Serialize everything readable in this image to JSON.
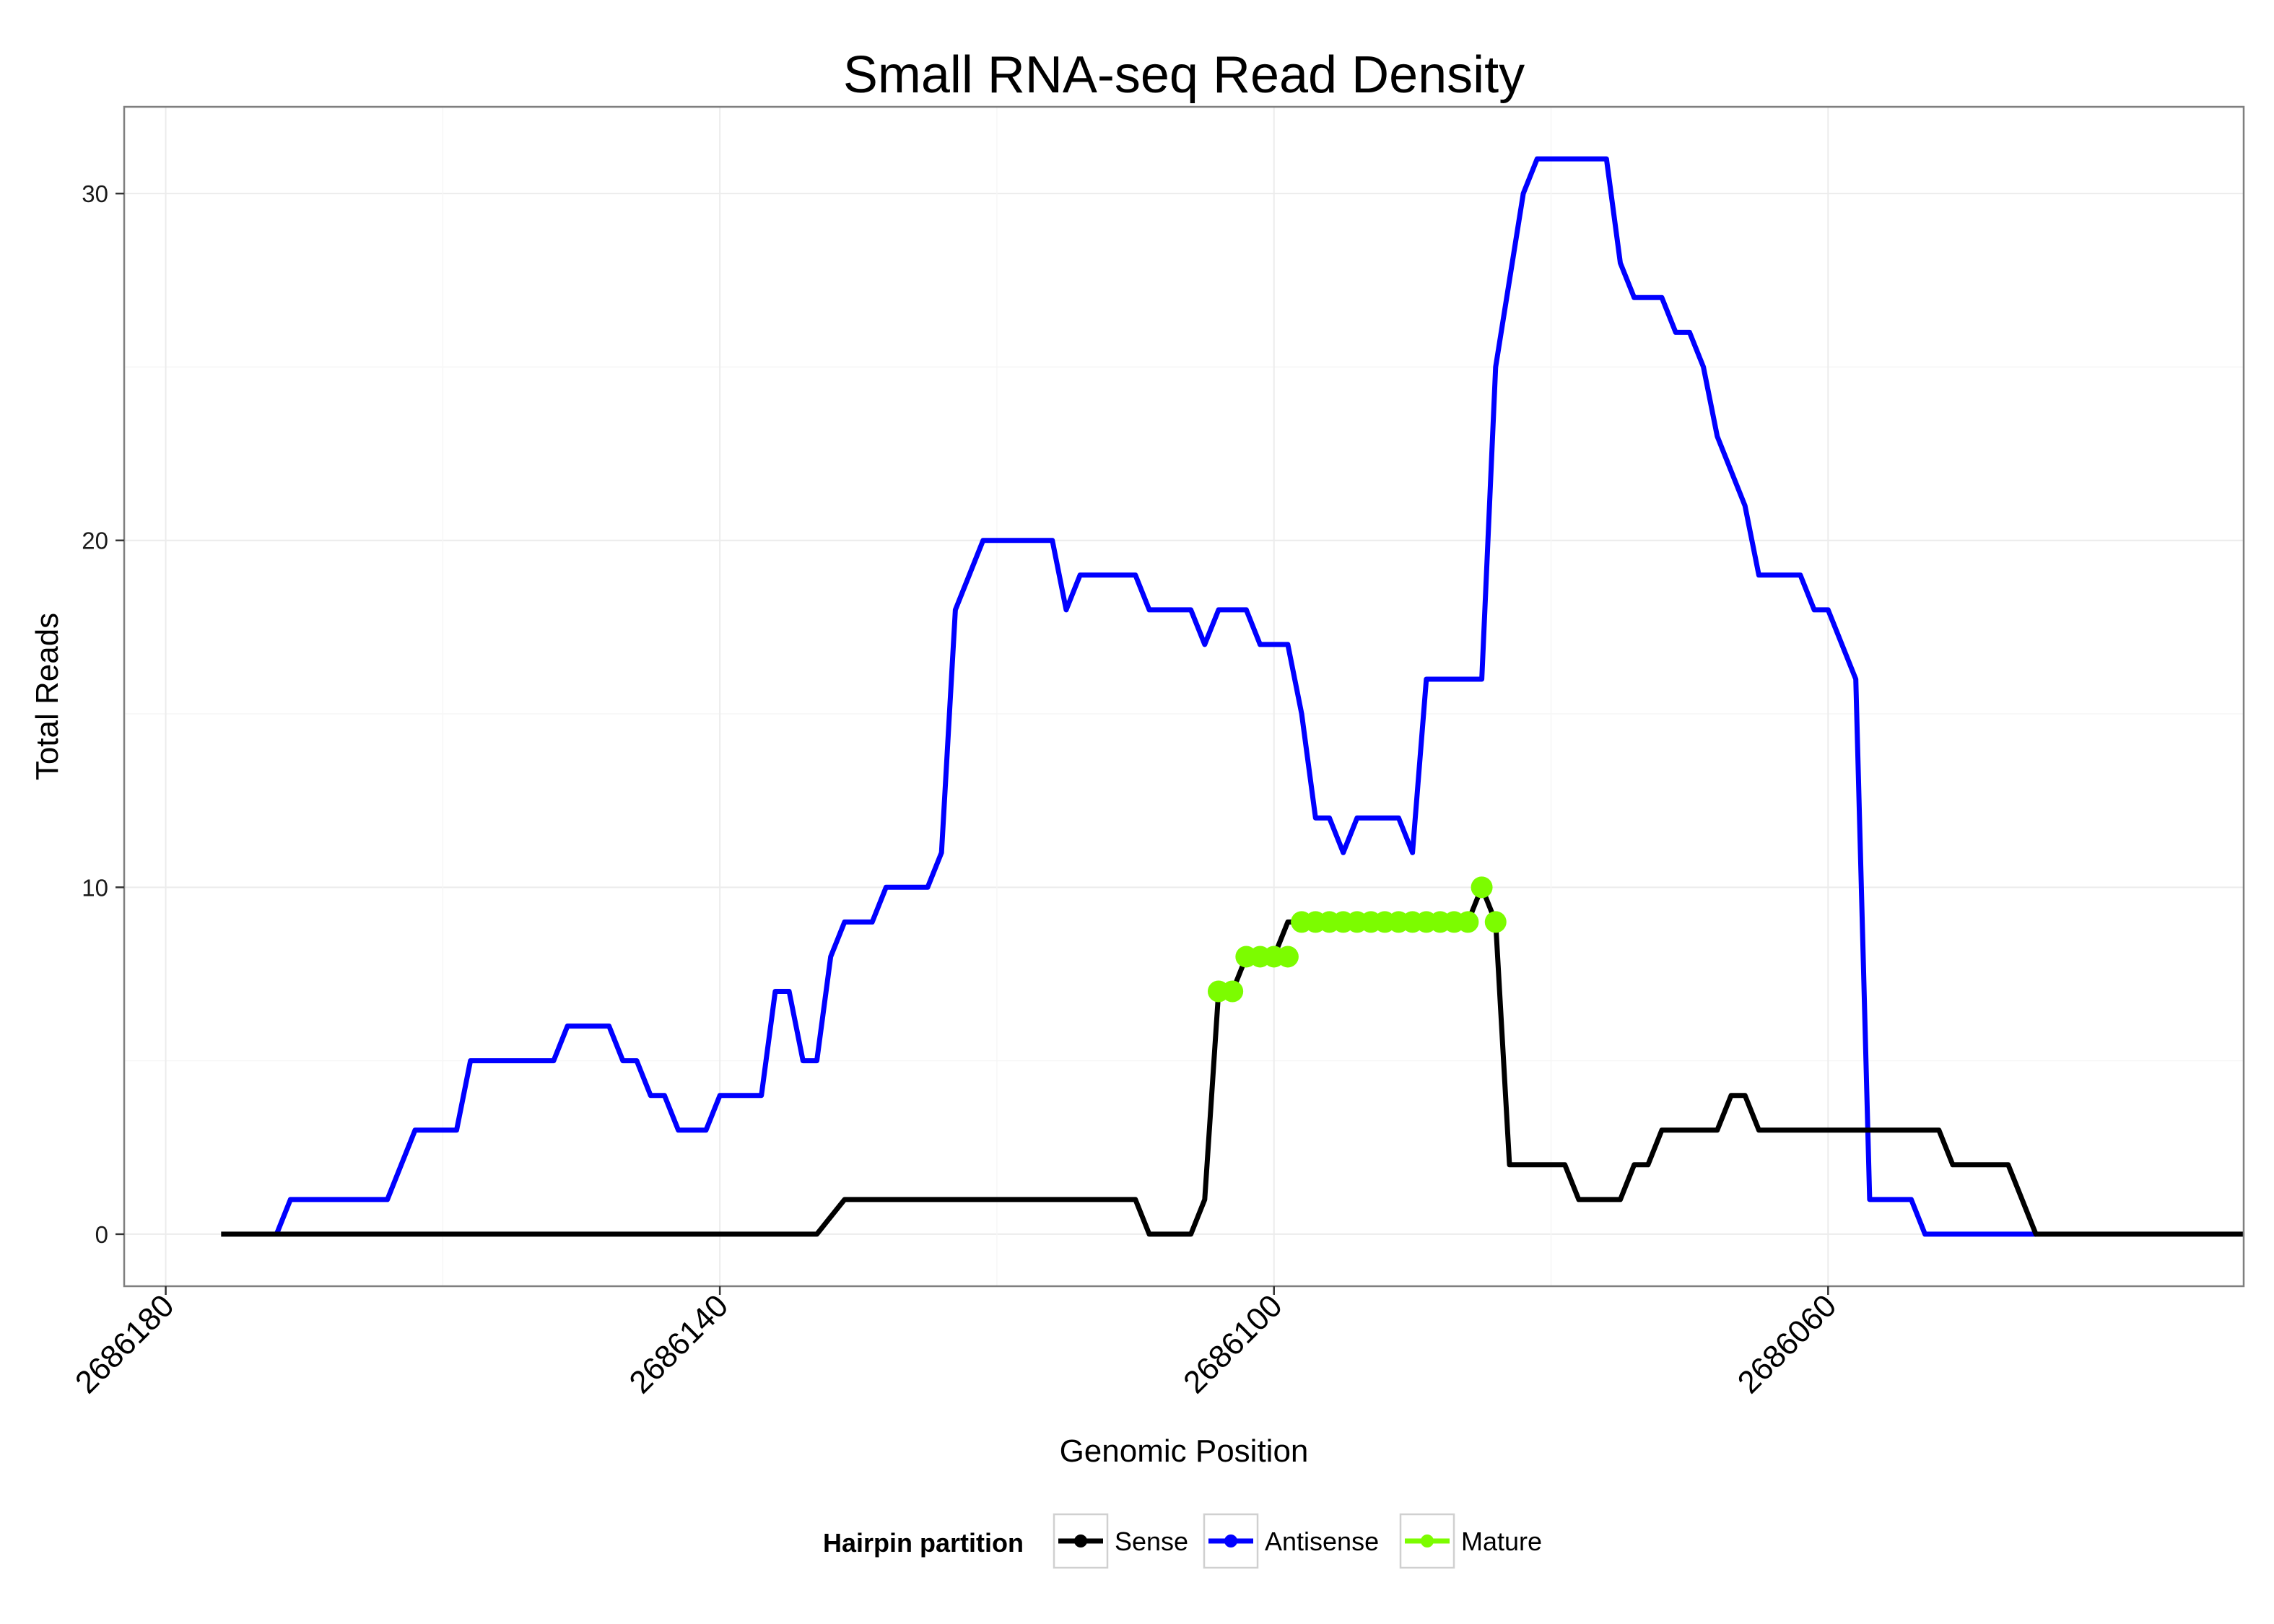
{
  "chart_data": {
    "type": "line",
    "title": "Small RNA-seq Read Density",
    "xlabel": "Genomic Position",
    "ylabel": "Total Reads",
    "x_reversed": true,
    "xlim": [
      2686183,
      2686030
    ],
    "ylim": [
      -1.5,
      32.5
    ],
    "x_ticks": [
      2686180,
      2686140,
      2686100,
      2686060
    ],
    "x_tick_labels": [
      "2686180",
      "2686140",
      "2686100",
      "2686060"
    ],
    "y_ticks": [
      0,
      10,
      20,
      30
    ],
    "y_tick_labels": [
      "0",
      "10",
      "20",
      "30"
    ],
    "grid": true,
    "legend": {
      "title": "Hairpin partition",
      "position": "bottom",
      "entries": [
        "Sense",
        "Antisense",
        "Mature"
      ]
    },
    "colors": {
      "Sense": "#000000",
      "Antisense": "#0000ff",
      "Mature": "#7cfc00"
    },
    "series": [
      {
        "name": "Sense",
        "points": [
          [
            2686176,
            0
          ],
          [
            2686135,
            0
          ],
          [
            2686133,
            0
          ],
          [
            2686131,
            1
          ],
          [
            2686110,
            1
          ],
          [
            2686109,
            0
          ],
          [
            2686106,
            0
          ],
          [
            2686105,
            1
          ],
          [
            2686104,
            7
          ],
          [
            2686103,
            7
          ],
          [
            2686102,
            8
          ],
          [
            2686101,
            8
          ],
          [
            2686100,
            8
          ],
          [
            2686099,
            9
          ],
          [
            2686086,
            9
          ],
          [
            2686085,
            10
          ],
          [
            2686084,
            9
          ],
          [
            2686083,
            2
          ],
          [
            2686079,
            2
          ],
          [
            2686078,
            1
          ],
          [
            2686075,
            1
          ],
          [
            2686074,
            2
          ],
          [
            2686073,
            2
          ],
          [
            2686072,
            3
          ],
          [
            2686068,
            3
          ],
          [
            2686067,
            4
          ],
          [
            2686066,
            4
          ],
          [
            2686065,
            3
          ],
          [
            2686052,
            3
          ],
          [
            2686051,
            2
          ],
          [
            2686047,
            2
          ],
          [
            2686045,
            0
          ],
          [
            2686030,
            0
          ]
        ]
      },
      {
        "name": "Antisense",
        "points": [
          [
            2686172,
            0
          ],
          [
            2686171,
            1
          ],
          [
            2686164,
            1
          ],
          [
            2686162,
            3
          ],
          [
            2686159,
            3
          ],
          [
            2686158,
            5
          ],
          [
            2686152,
            5
          ],
          [
            2686151,
            6
          ],
          [
            2686148,
            6
          ],
          [
            2686147,
            5
          ],
          [
            2686146,
            5
          ],
          [
            2686145,
            4
          ],
          [
            2686144,
            4
          ],
          [
            2686143,
            3
          ],
          [
            2686141,
            3
          ],
          [
            2686140,
            4
          ],
          [
            2686137,
            4
          ],
          [
            2686136,
            7
          ],
          [
            2686135,
            7
          ],
          [
            2686134,
            5
          ],
          [
            2686133,
            5
          ],
          [
            2686132,
            8
          ],
          [
            2686131,
            9
          ],
          [
            2686129,
            9
          ],
          [
            2686128,
            10
          ],
          [
            2686125,
            10
          ],
          [
            2686124,
            11
          ],
          [
            2686123,
            18
          ],
          [
            2686121,
            20
          ],
          [
            2686116,
            20
          ],
          [
            2686115,
            18
          ],
          [
            2686114,
            19
          ],
          [
            2686110,
            19
          ],
          [
            2686109,
            18
          ],
          [
            2686106,
            18
          ],
          [
            2686105,
            17
          ],
          [
            2686104,
            18
          ],
          [
            2686102,
            18
          ],
          [
            2686101,
            17
          ],
          [
            2686099,
            17
          ],
          [
            2686098,
            15
          ],
          [
            2686097,
            12
          ],
          [
            2686096,
            12
          ],
          [
            2686095,
            11
          ],
          [
            2686094,
            12
          ],
          [
            2686091,
            12
          ],
          [
            2686090,
            11
          ],
          [
            2686089,
            16
          ],
          [
            2686085,
            16
          ],
          [
            2686084,
            25
          ],
          [
            2686082,
            30
          ],
          [
            2686081,
            31
          ],
          [
            2686076,
            31
          ],
          [
            2686075,
            28
          ],
          [
            2686074,
            27
          ],
          [
            2686072,
            27
          ],
          [
            2686071,
            26
          ],
          [
            2686070,
            26
          ],
          [
            2686069,
            25
          ],
          [
            2686068,
            23
          ],
          [
            2686066,
            21
          ],
          [
            2686065,
            19
          ],
          [
            2686062,
            19
          ],
          [
            2686061,
            18
          ],
          [
            2686060,
            18
          ],
          [
            2686058,
            16
          ],
          [
            2686057,
            1
          ],
          [
            2686054,
            1
          ],
          [
            2686053,
            0
          ],
          [
            2686045,
            0
          ]
        ]
      },
      {
        "name": "Mature",
        "points": [
          [
            2686104,
            7
          ],
          [
            2686103,
            7
          ],
          [
            2686102,
            8
          ],
          [
            2686101,
            8
          ],
          [
            2686100,
            8
          ],
          [
            2686099,
            8
          ],
          [
            2686098,
            9
          ],
          [
            2686097,
            9
          ],
          [
            2686096,
            9
          ],
          [
            2686095,
            9
          ],
          [
            2686094,
            9
          ],
          [
            2686093,
            9
          ],
          [
            2686092,
            9
          ],
          [
            2686091,
            9
          ],
          [
            2686090,
            9
          ],
          [
            2686089,
            9
          ],
          [
            2686088,
            9
          ],
          [
            2686087,
            9
          ],
          [
            2686086,
            9
          ],
          [
            2686085,
            10
          ],
          [
            2686084,
            9
          ]
        ]
      }
    ]
  }
}
